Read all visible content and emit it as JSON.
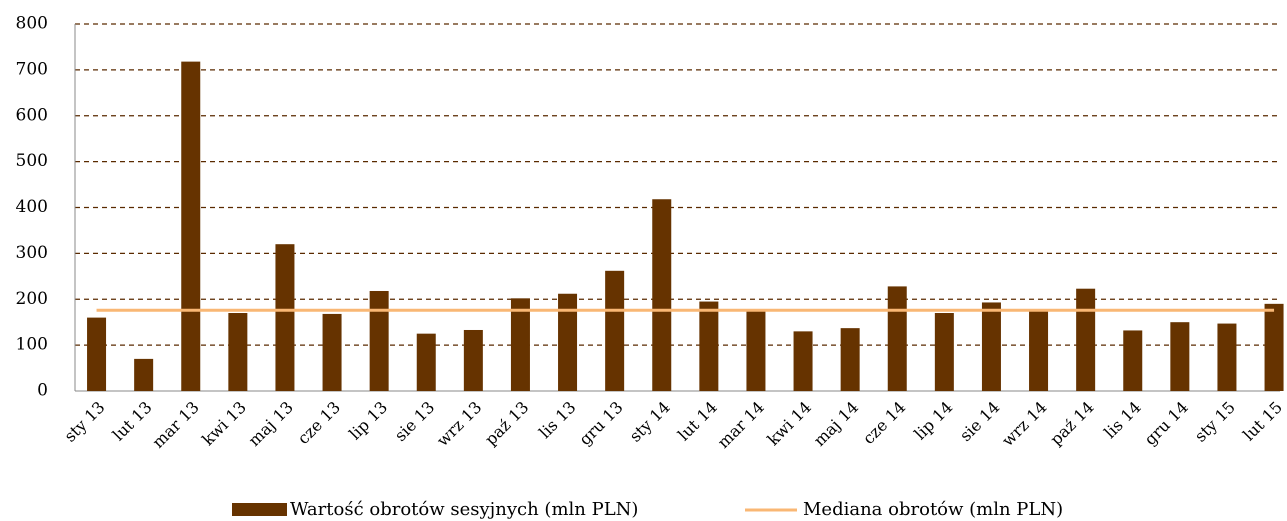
{
  "chart_data": {
    "type": "bar",
    "categories": [
      "sty 13",
      "lut 13",
      "mar 13",
      "kwi 13",
      "maj 13",
      "cze 13",
      "lip 13",
      "sie 13",
      "wrz 13",
      "paź 13",
      "lis 13",
      "gru 13",
      "sty 14",
      "lut 14",
      "mar 14",
      "kwi 14",
      "maj 14",
      "cze 14",
      "lip 14",
      "sie 14",
      "wrz 14",
      "paź 14",
      "lis 14",
      "gru 14",
      "sty 15",
      "lut 15"
    ],
    "series": [
      {
        "name": "Wartość obrotów sesyjnych (mln PLN)",
        "type": "bar",
        "color": "#663300",
        "values": [
          160,
          70,
          718,
          170,
          320,
          168,
          218,
          125,
          133,
          202,
          212,
          262,
          418,
          195,
          175,
          130,
          137,
          228,
          170,
          193,
          175,
          223,
          132,
          150,
          147,
          190
        ]
      },
      {
        "name": "Mediana obrotów (mln PLN)",
        "type": "line",
        "color": "#f9b774",
        "values": [
          176,
          176,
          176,
          176,
          176,
          176,
          176,
          176,
          176,
          176,
          176,
          176,
          176,
          176,
          176,
          176,
          176,
          176,
          176,
          176,
          176,
          176,
          176,
          176,
          176,
          176
        ]
      }
    ],
    "ylim": [
      0,
      800
    ],
    "yticks": [
      0,
      100,
      200,
      300,
      400,
      500,
      600,
      700,
      800
    ],
    "grid": true,
    "legend": "bottom"
  }
}
